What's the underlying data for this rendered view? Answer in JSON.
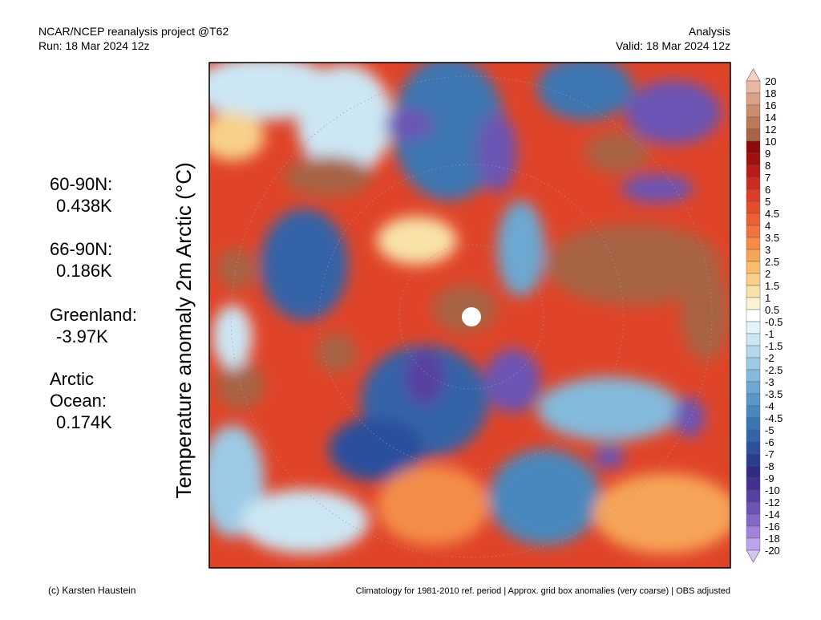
{
  "header": {
    "left": [
      "NCAR/NCEP reanalysis project @T62",
      "Run: 18 Mar 2024 12z"
    ],
    "right": [
      "Analysis",
      "Valid: 18 Mar 2024 12z"
    ]
  },
  "ylabel": "Temperature anomaly 2m Arctic (°C)",
  "stats": [
    {
      "label": [
        "60-90N:"
      ],
      "value": "0.438K"
    },
    {
      "label": [
        "66-90N:"
      ],
      "value": "0.186K"
    },
    {
      "label": [
        "Greenland:"
      ],
      "value": "-3.97K"
    },
    {
      "label": [
        "Arctic",
        "Ocean:"
      ],
      "value": "0.174K"
    }
  ],
  "colorbar": {
    "labels": [
      20,
      18,
      16,
      14,
      12,
      10,
      9,
      8,
      7,
      6,
      5,
      4.5,
      4,
      3.5,
      3,
      2.5,
      2,
      1.5,
      1,
      0.5,
      -0.5,
      -1,
      -1.5,
      -2,
      -2.5,
      -3,
      -3.5,
      -4,
      -4.5,
      -5,
      -6,
      -7,
      -8,
      -9,
      -10,
      -12,
      -14,
      -16,
      -18,
      -20
    ],
    "colors": [
      "#f6d0c0",
      "#e8b8a0",
      "#dca088",
      "#cc8c70",
      "#bc7858",
      "#a86444",
      "#8c0a0a",
      "#a01010",
      "#b81c18",
      "#cc2c20",
      "#dc3c28",
      "#e44c2c",
      "#ec6034",
      "#f0743c",
      "#f48c48",
      "#f6a458",
      "#f8bc6c",
      "#f8d088",
      "#f8e2a8",
      "#fcf2d4",
      "#ffffff",
      "#e4f2fa",
      "#cce6f4",
      "#b4d8ee",
      "#9ccae6",
      "#84badc",
      "#6ca8d2",
      "#5898c8",
      "#4888be",
      "#3c76b2",
      "#3464a8",
      "#2c509c",
      "#283c90",
      "#302c84",
      "#44308c",
      "#5840a0",
      "#6c54b4",
      "#8468c8",
      "#a084dc",
      "#bca4ec",
      "#d4c4f4"
    ]
  },
  "footer": {
    "left": "(c) Karsten Haustein",
    "right": "Climatology for 1981-2010 ref. period | Approx. grid box anomalies (very coarse) | OBS adjusted"
  }
}
